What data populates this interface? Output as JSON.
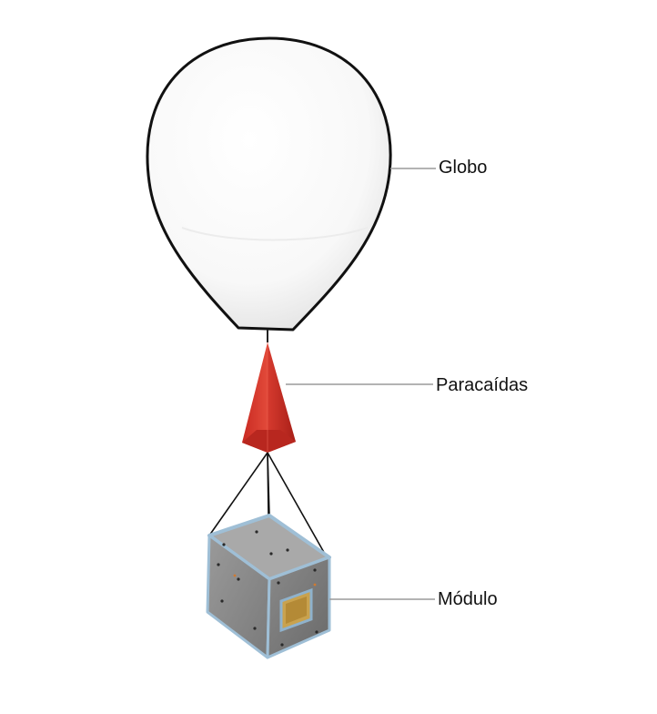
{
  "labels": {
    "balloon": "Globo",
    "parachute": "Paracaídas",
    "module": "Módulo"
  },
  "colors": {
    "balloon_fill": "#f7f7f7",
    "balloon_outline": "#111111",
    "parachute_red": "#d83a2e",
    "module_gray": "#8c8c8c",
    "frame_blue": "#9fbfd6",
    "panel_gold": "#c9a24e",
    "leader_line": "#9a9a9a"
  }
}
